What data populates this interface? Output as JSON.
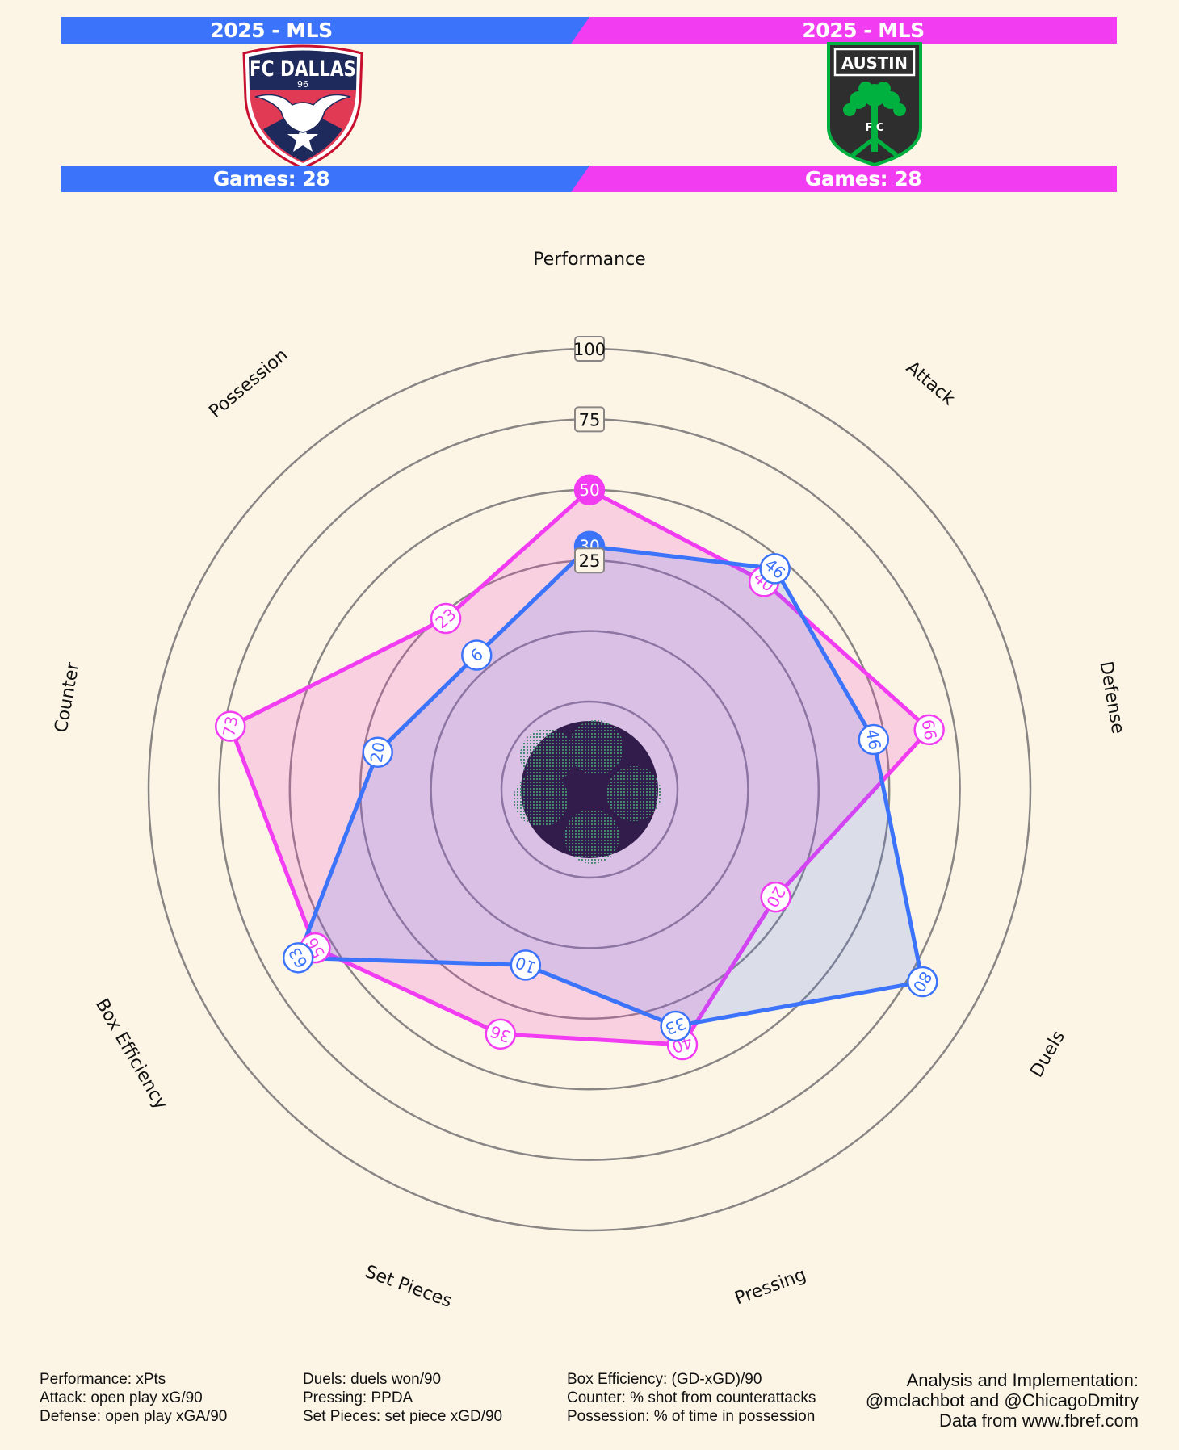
{
  "header": {
    "left_season": "2025 - MLS",
    "right_season": "2025 - MLS",
    "left_games": "Games: 28",
    "right_games": "Games: 28",
    "left_color": "#3b73fa",
    "right_color": "#f23cf2"
  },
  "teams": {
    "left": {
      "logo_text": "FC DALLAS",
      "logo_subtext": "96",
      "logo_icon": "longhorn-star-shield"
    },
    "right": {
      "logo_text": "AUSTIN",
      "logo_subtext": "F C",
      "logo_icon": "oak-tree-shield"
    }
  },
  "chart_data": {
    "type": "radar",
    "axes": [
      "Performance",
      "Attack",
      "Defense",
      "Duels",
      "Pressing",
      "Set Pieces",
      "Box Efficiency",
      "Counter",
      "Possession"
    ],
    "rlim": [
      -25,
      100
    ],
    "ring_labels": [
      "25",
      "50",
      "75",
      "100"
    ],
    "grid": true,
    "series": [
      {
        "color": "#f23cf2",
        "values": [
          50,
          40,
          66,
          20,
          40,
          36,
          56,
          73,
          23
        ]
      },
      {
        "color": "#3b73fa",
        "values": [
          30,
          46,
          46,
          80,
          33,
          10,
          63,
          20,
          6
        ]
      }
    ]
  },
  "footer": {
    "definitions_col1": [
      "Performance: xPts",
      "Attack: open play xG/90",
      "Defense: open play xGA/90"
    ],
    "definitions_col2": [
      "Duels: duels won/90",
      "Pressing: PPDA",
      "Set Pieces: set piece xGD/90"
    ],
    "definitions_col3": [
      "Box Efficiency: (GD-xGD)/90",
      "Counter: % shot from counterattacks",
      "Possession: % of time in possession"
    ],
    "credits": [
      "Analysis and Implementation:",
      "@mclachbot and @ChicagoDmitry",
      "Data from www.fbref.com"
    ]
  }
}
